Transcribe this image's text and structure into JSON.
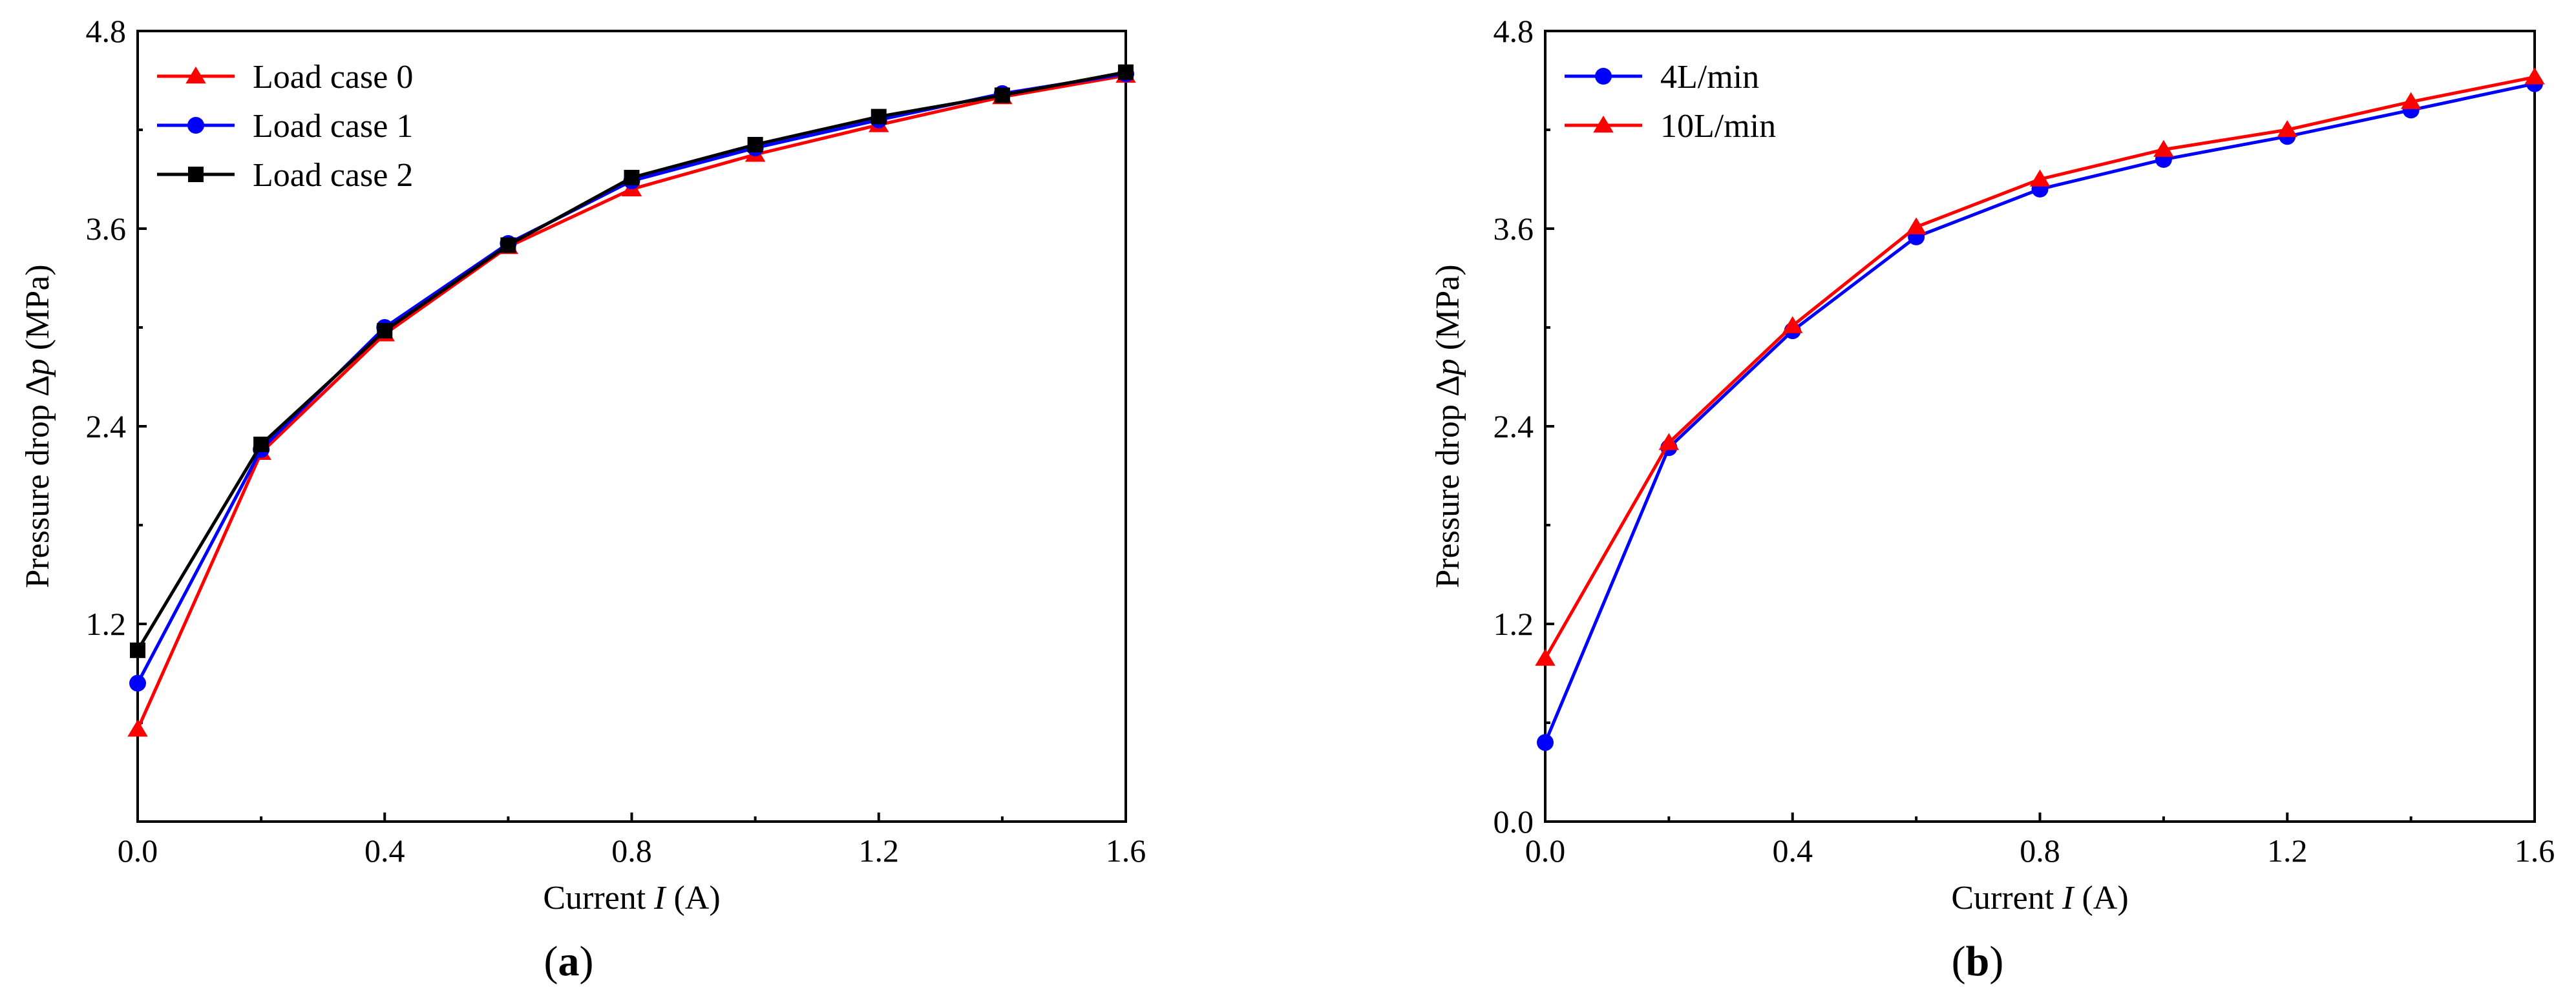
{
  "chart_data": [
    {
      "type": "line",
      "panel_label": "a",
      "xlabel": {
        "prefix": "Current ",
        "var": "I",
        "suffix": " (A)"
      },
      "ylabel": {
        "prefix": "Pressure drop ",
        "var": "∆p",
        "suffix": " (MPa)"
      },
      "xlim": [
        0,
        1.6
      ],
      "ylim": [
        0,
        4.8
      ],
      "xticks": [
        0,
        0.4,
        0.8,
        1.2,
        1.6
      ],
      "xtick_labels": [
        "0.0",
        "0.4",
        "0.8",
        "1.2",
        "1.6"
      ],
      "yticks": [
        1.2,
        2.4,
        3.6,
        4.8
      ],
      "ytick_labels": [
        "1.2",
        "2.4",
        "3.6",
        "4.8"
      ],
      "legend_position": "top-left",
      "x": [
        0,
        0.2,
        0.4,
        0.6,
        0.8,
        1.0,
        1.2,
        1.4,
        1.6
      ],
      "series": [
        {
          "name": "Load case 0",
          "color": "#ff0000",
          "marker": "triangle",
          "values": [
            0.56,
            2.24,
            2.96,
            3.49,
            3.84,
            4.05,
            4.23,
            4.4,
            4.53
          ]
        },
        {
          "name": "Load case 1",
          "color": "#0000ff",
          "marker": "circle",
          "values": [
            0.84,
            2.26,
            3.0,
            3.51,
            3.89,
            4.09,
            4.26,
            4.42,
            4.54
          ]
        },
        {
          "name": "Load case 2",
          "color": "#000000",
          "marker": "square",
          "values": [
            1.04,
            2.29,
            2.98,
            3.5,
            3.91,
            4.11,
            4.28,
            4.41,
            4.55
          ]
        }
      ]
    },
    {
      "type": "line",
      "panel_label": "b",
      "xlabel": {
        "prefix": "Current ",
        "var": "I",
        "suffix": " (A)"
      },
      "ylabel": {
        "prefix": "Pressure drop ",
        "var": "∆p",
        "suffix": " (MPa)"
      },
      "xlim": [
        0,
        1.6
      ],
      "ylim": [
        0,
        4.8
      ],
      "xticks": [
        0,
        0.4,
        0.8,
        1.2,
        1.6
      ],
      "xtick_labels": [
        "0.0",
        "0.4",
        "0.8",
        "1.2",
        "1.6"
      ],
      "yticks": [
        0,
        1.2,
        2.4,
        3.6,
        4.8
      ],
      "ytick_labels": [
        "0.0",
        "1.2",
        "2.4",
        "3.6",
        "4.8"
      ],
      "legend_position": "top-left",
      "x": [
        0,
        0.2,
        0.4,
        0.6,
        0.8,
        1.0,
        1.2,
        1.4,
        1.6
      ],
      "series": [
        {
          "name": "4L/min",
          "color": "#0000ff",
          "marker": "circle",
          "values": [
            0.48,
            2.27,
            2.98,
            3.55,
            3.84,
            4.02,
            4.16,
            4.32,
            4.48
          ]
        },
        {
          "name": "10L/min",
          "color": "#ff0000",
          "marker": "triangle",
          "values": [
            0.99,
            2.3,
            3.01,
            3.61,
            3.9,
            4.08,
            4.2,
            4.37,
            4.52
          ]
        }
      ]
    }
  ]
}
